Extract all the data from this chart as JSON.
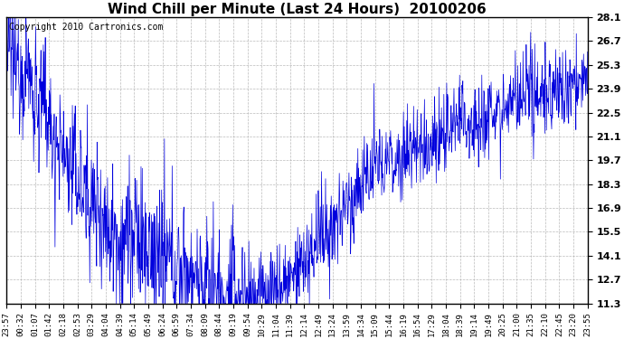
{
  "title": "Wind Chill per Minute (Last 24 Hours)  20100206",
  "copyright_text": "Copyright 2010 Cartronics.com",
  "line_color": "#0000dd",
  "bg_color": "#ffffff",
  "plot_bg_color": "#ffffff",
  "grid_color": "#aaaaaa",
  "ylim": [
    11.3,
    28.1
  ],
  "yticks": [
    11.3,
    12.7,
    14.1,
    15.5,
    16.9,
    18.3,
    19.7,
    21.1,
    22.5,
    23.9,
    25.3,
    26.7,
    28.1
  ],
  "xtick_labels": [
    "23:57",
    "00:32",
    "01:07",
    "01:42",
    "02:18",
    "02:53",
    "03:29",
    "04:04",
    "04:39",
    "05:14",
    "05:49",
    "06:24",
    "06:59",
    "07:34",
    "08:09",
    "08:44",
    "09:19",
    "09:54",
    "10:29",
    "11:04",
    "11:39",
    "12:14",
    "12:49",
    "13:24",
    "13:59",
    "14:34",
    "15:09",
    "15:44",
    "16:19",
    "16:54",
    "17:29",
    "18:04",
    "18:39",
    "19:14",
    "19:49",
    "20:25",
    "21:00",
    "21:35",
    "22:10",
    "22:45",
    "23:20",
    "23:55"
  ],
  "title_fontsize": 11,
  "tick_fontsize": 6.5,
  "copyright_fontsize": 7,
  "ytick_fontweight": "bold",
  "ytick_fontsize": 8
}
